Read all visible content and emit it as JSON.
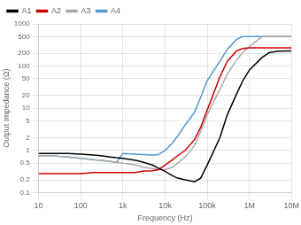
{
  "chart_data": {
    "type": "line",
    "xlabel": "Frequency (Hz)",
    "ylabel": "Output Impedance (Ω)",
    "x": [
      10,
      20,
      30,
      50,
      100,
      200,
      300,
      500,
      700,
      1000,
      2000,
      3000,
      5000,
      7000,
      10000,
      15000,
      20000,
      30000,
      50000,
      70000,
      100000,
      200000,
      300000,
      500000,
      700000,
      1000000,
      2000000,
      3000000,
      5000000,
      10000000
    ],
    "series": [
      {
        "name": "A1",
        "color": "#000000",
        "values": [
          0.85,
          0.85,
          0.85,
          0.85,
          0.82,
          0.78,
          0.75,
          0.7,
          0.67,
          0.65,
          0.58,
          0.53,
          0.45,
          0.38,
          0.32,
          0.25,
          0.22,
          0.2,
          0.18,
          0.22,
          0.45,
          2.0,
          7,
          22,
          45,
          80,
          160,
          210,
          225,
          230
        ]
      },
      {
        "name": "A2",
        "color": "#cc0000",
        "values": [
          0.28,
          0.28,
          0.28,
          0.28,
          0.28,
          0.3,
          0.3,
          0.3,
          0.3,
          0.3,
          0.3,
          0.32,
          0.33,
          0.35,
          0.45,
          0.6,
          0.75,
          1.0,
          1.8,
          3.5,
          9,
          55,
          130,
          230,
          260,
          270,
          270,
          270,
          270,
          270
        ]
      },
      {
        "name": "A3",
        "color": "#aaaaaa",
        "values": [
          0.75,
          0.75,
          0.72,
          0.7,
          0.65,
          0.6,
          0.58,
          0.55,
          0.52,
          0.5,
          0.45,
          0.4,
          0.37,
          0.35,
          0.35,
          0.4,
          0.5,
          0.7,
          1.3,
          2.8,
          7,
          28,
          65,
          140,
          210,
          290,
          500,
          500,
          500,
          500
        ]
      },
      {
        "name": "A4",
        "color": "#5599cc",
        "values": [
          0.75,
          0.75,
          0.72,
          0.7,
          0.65,
          0.6,
          0.58,
          0.55,
          0.52,
          0.85,
          0.82,
          0.8,
          0.78,
          0.8,
          1.0,
          1.5,
          2.2,
          4.0,
          8,
          18,
          45,
          130,
          250,
          430,
          500,
          500,
          500,
          500,
          500,
          500
        ]
      }
    ],
    "xlim": [
      10,
      10000000
    ],
    "ylim": [
      0.1,
      1000
    ],
    "xticks": [
      10,
      100,
      {
        "value": 1000,
        "label": "1k"
      },
      {
        "value": 10000,
        "label": "10k"
      },
      {
        "value": 100000,
        "label": "100k"
      },
      {
        "value": 1000000,
        "label": "1M"
      },
      {
        "value": 10000000,
        "label": "10M"
      }
    ],
    "yticks": [
      0.1,
      0.2,
      0.5,
      1,
      2,
      5,
      10,
      20,
      50,
      100,
      200,
      500,
      1000
    ],
    "log": true,
    "grid": true,
    "legend": "upper left"
  }
}
